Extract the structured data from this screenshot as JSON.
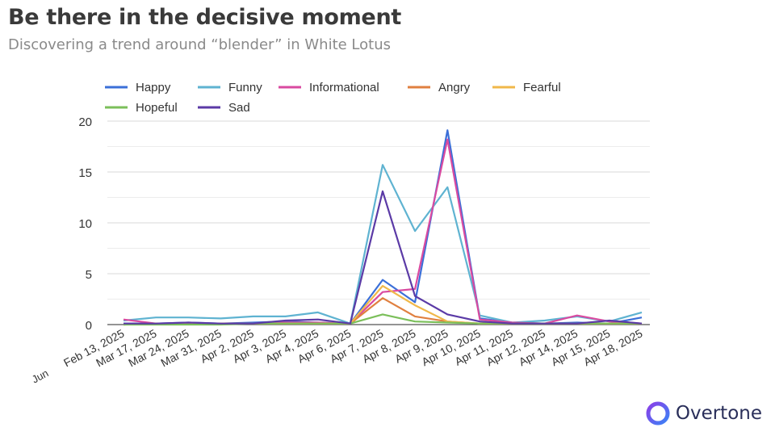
{
  "header": {
    "title": "Be there in the decisive moment",
    "subtitle": "Discovering a trend around “blender” in White Lotus"
  },
  "brand": {
    "name": "Overtone",
    "logo_colors": [
      "#7c3aed",
      "#3b82f6"
    ]
  },
  "chart_data": {
    "type": "line",
    "title": "",
    "xlabel": "",
    "ylabel": "",
    "ylim": [
      0,
      20
    ],
    "yticks": [
      0,
      5,
      10,
      15,
      20
    ],
    "grid": true,
    "legend_position": "top",
    "partial_first_label": "Jun",
    "categories": [
      "Feb 13, 2025",
      "Mar 17, 2025",
      "Mar 24, 2025",
      "Mar 31, 2025",
      "Apr 2, 2025",
      "Apr 3, 2025",
      "Apr 4, 2025",
      "Apr 6, 2025",
      "Apr 7, 2025",
      "Apr 8, 2025",
      "Apr 9, 2025",
      "Apr 10, 2025",
      "Apr 11, 2025",
      "Apr 12, 2025",
      "Apr 14, 2025",
      "Apr 15, 2025",
      "Apr 18, 2025"
    ],
    "series": [
      {
        "name": "Happy",
        "color": "#3b6fd8",
        "values": [
          0.1,
          0.1,
          0.2,
          0.1,
          0.2,
          0.3,
          0.2,
          0.1,
          4.4,
          2.2,
          19.1,
          0.6,
          0.2,
          0.1,
          0.2,
          0.1,
          0.7
        ]
      },
      {
        "name": "Funny",
        "color": "#5fb3d1",
        "values": [
          0.4,
          0.7,
          0.7,
          0.6,
          0.8,
          0.8,
          1.2,
          0.1,
          15.7,
          9.2,
          13.5,
          0.9,
          0.2,
          0.4,
          0.8,
          0.3,
          1.2
        ]
      },
      {
        "name": "Informational",
        "color": "#d94aa0",
        "values": [
          0.5,
          0.1,
          0.1,
          0.1,
          0.1,
          0.2,
          0.2,
          0.1,
          3.2,
          3.5,
          18.2,
          0.5,
          0.2,
          0.1,
          0.9,
          0.3,
          0.1
        ]
      },
      {
        "name": "Angry",
        "color": "#e08040",
        "values": [
          0.0,
          0.1,
          0.1,
          0.1,
          0.1,
          0.1,
          0.1,
          0.1,
          2.6,
          0.8,
          0.3,
          0.1,
          0.1,
          0.1,
          0.1,
          0.1,
          0.1
        ]
      },
      {
        "name": "Fearful",
        "color": "#f0b84a",
        "values": [
          0.0,
          0.1,
          0.1,
          0.1,
          0.1,
          0.1,
          0.1,
          0.1,
          3.8,
          1.9,
          0.3,
          0.1,
          0.1,
          0.1,
          0.1,
          0.1,
          0.1
        ]
      },
      {
        "name": "Hopeful",
        "color": "#7bbf5a",
        "values": [
          0.0,
          0.0,
          0.0,
          0.0,
          0.1,
          0.1,
          0.1,
          0.1,
          1.0,
          0.3,
          0.2,
          0.1,
          0.1,
          0.1,
          0.1,
          0.1,
          0.1
        ]
      },
      {
        "name": "Sad",
        "color": "#5b3aa6",
        "values": [
          0.1,
          0.1,
          0.2,
          0.1,
          0.1,
          0.4,
          0.5,
          0.1,
          13.1,
          2.8,
          1.0,
          0.3,
          0.1,
          0.1,
          0.1,
          0.4,
          0.1
        ]
      }
    ]
  }
}
